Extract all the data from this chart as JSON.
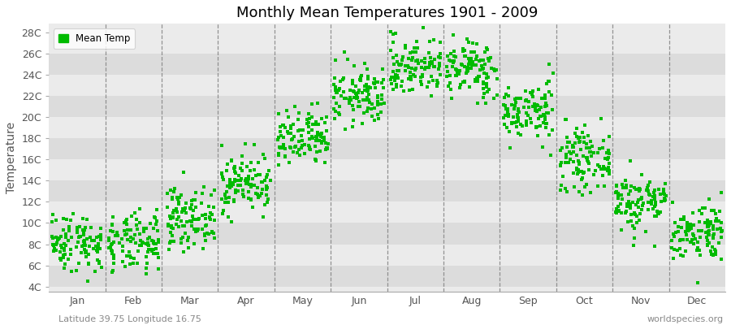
{
  "title": "Monthly Mean Temperatures 1901 - 2009",
  "ylabel": "Temperature",
  "xlabel_bottom_left": "Latitude 39.75 Longitude 16.75",
  "xlabel_bottom_right": "worldspecies.org",
  "legend_label": "Mean Temp",
  "dot_color": "#00bb00",
  "stripe_color_light": "#ebebeb",
  "stripe_color_dark": "#dcdcdc",
  "ytick_labels": [
    "4C",
    "6C",
    "8C",
    "10C",
    "12C",
    "14C",
    "16C",
    "18C",
    "20C",
    "22C",
    "24C",
    "26C",
    "28C"
  ],
  "ytick_values": [
    4,
    6,
    8,
    10,
    12,
    14,
    16,
    18,
    20,
    22,
    24,
    26,
    28
  ],
  "months": [
    "Jan",
    "Feb",
    "Mar",
    "Apr",
    "May",
    "Jun",
    "Jul",
    "Aug",
    "Sep",
    "Oct",
    "Nov",
    "Dec"
  ],
  "monthly_means": [
    8.2,
    8.0,
    10.5,
    13.8,
    17.8,
    22.0,
    24.8,
    24.5,
    20.5,
    16.0,
    12.0,
    9.2
  ],
  "monthly_stds": [
    1.4,
    1.4,
    1.4,
    1.4,
    1.4,
    1.4,
    1.4,
    1.4,
    1.4,
    1.4,
    1.4,
    1.4
  ],
  "n_years": 109,
  "seed": 42,
  "ylim": [
    3.5,
    28.8
  ],
  "n_months": 12
}
